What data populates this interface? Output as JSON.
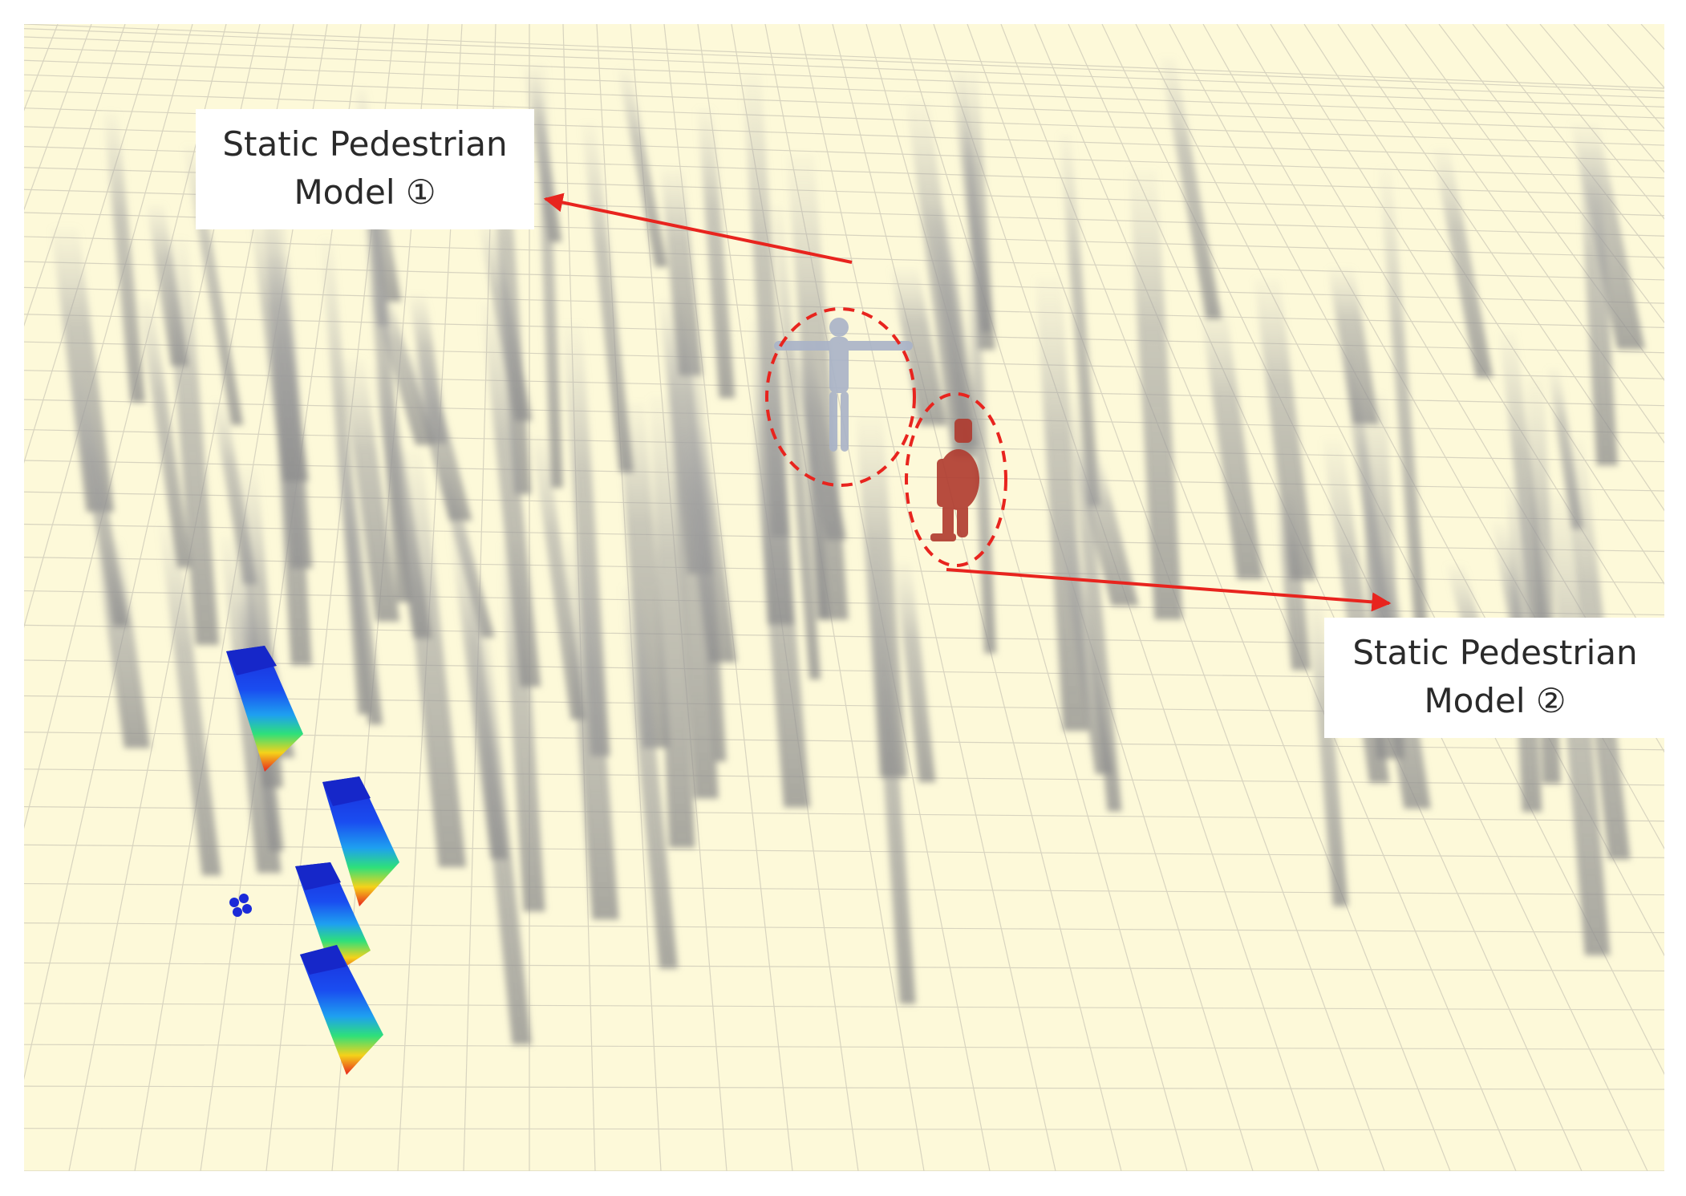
{
  "annotations": [
    {
      "id": "model-1",
      "line1": "Static Pedestrian",
      "line2": "Model ①",
      "color": "#e8241e"
    },
    {
      "id": "model-2",
      "line1": "Static Pedestrian",
      "line2": "Model ②",
      "color": "#e8241e"
    }
  ],
  "scene": {
    "floor_color": "#fdf9d9",
    "grid_color": "#d6d2bd",
    "pillar_color": "#9a9a9a",
    "pedestrian_1_color": "#a9b3c8",
    "pedestrian_2_color": "#b03a2e",
    "heatmap_colors": [
      "#1b2bd8",
      "#1ea0f0",
      "#2ee07a",
      "#f5d21a",
      "#e8241e"
    ]
  }
}
